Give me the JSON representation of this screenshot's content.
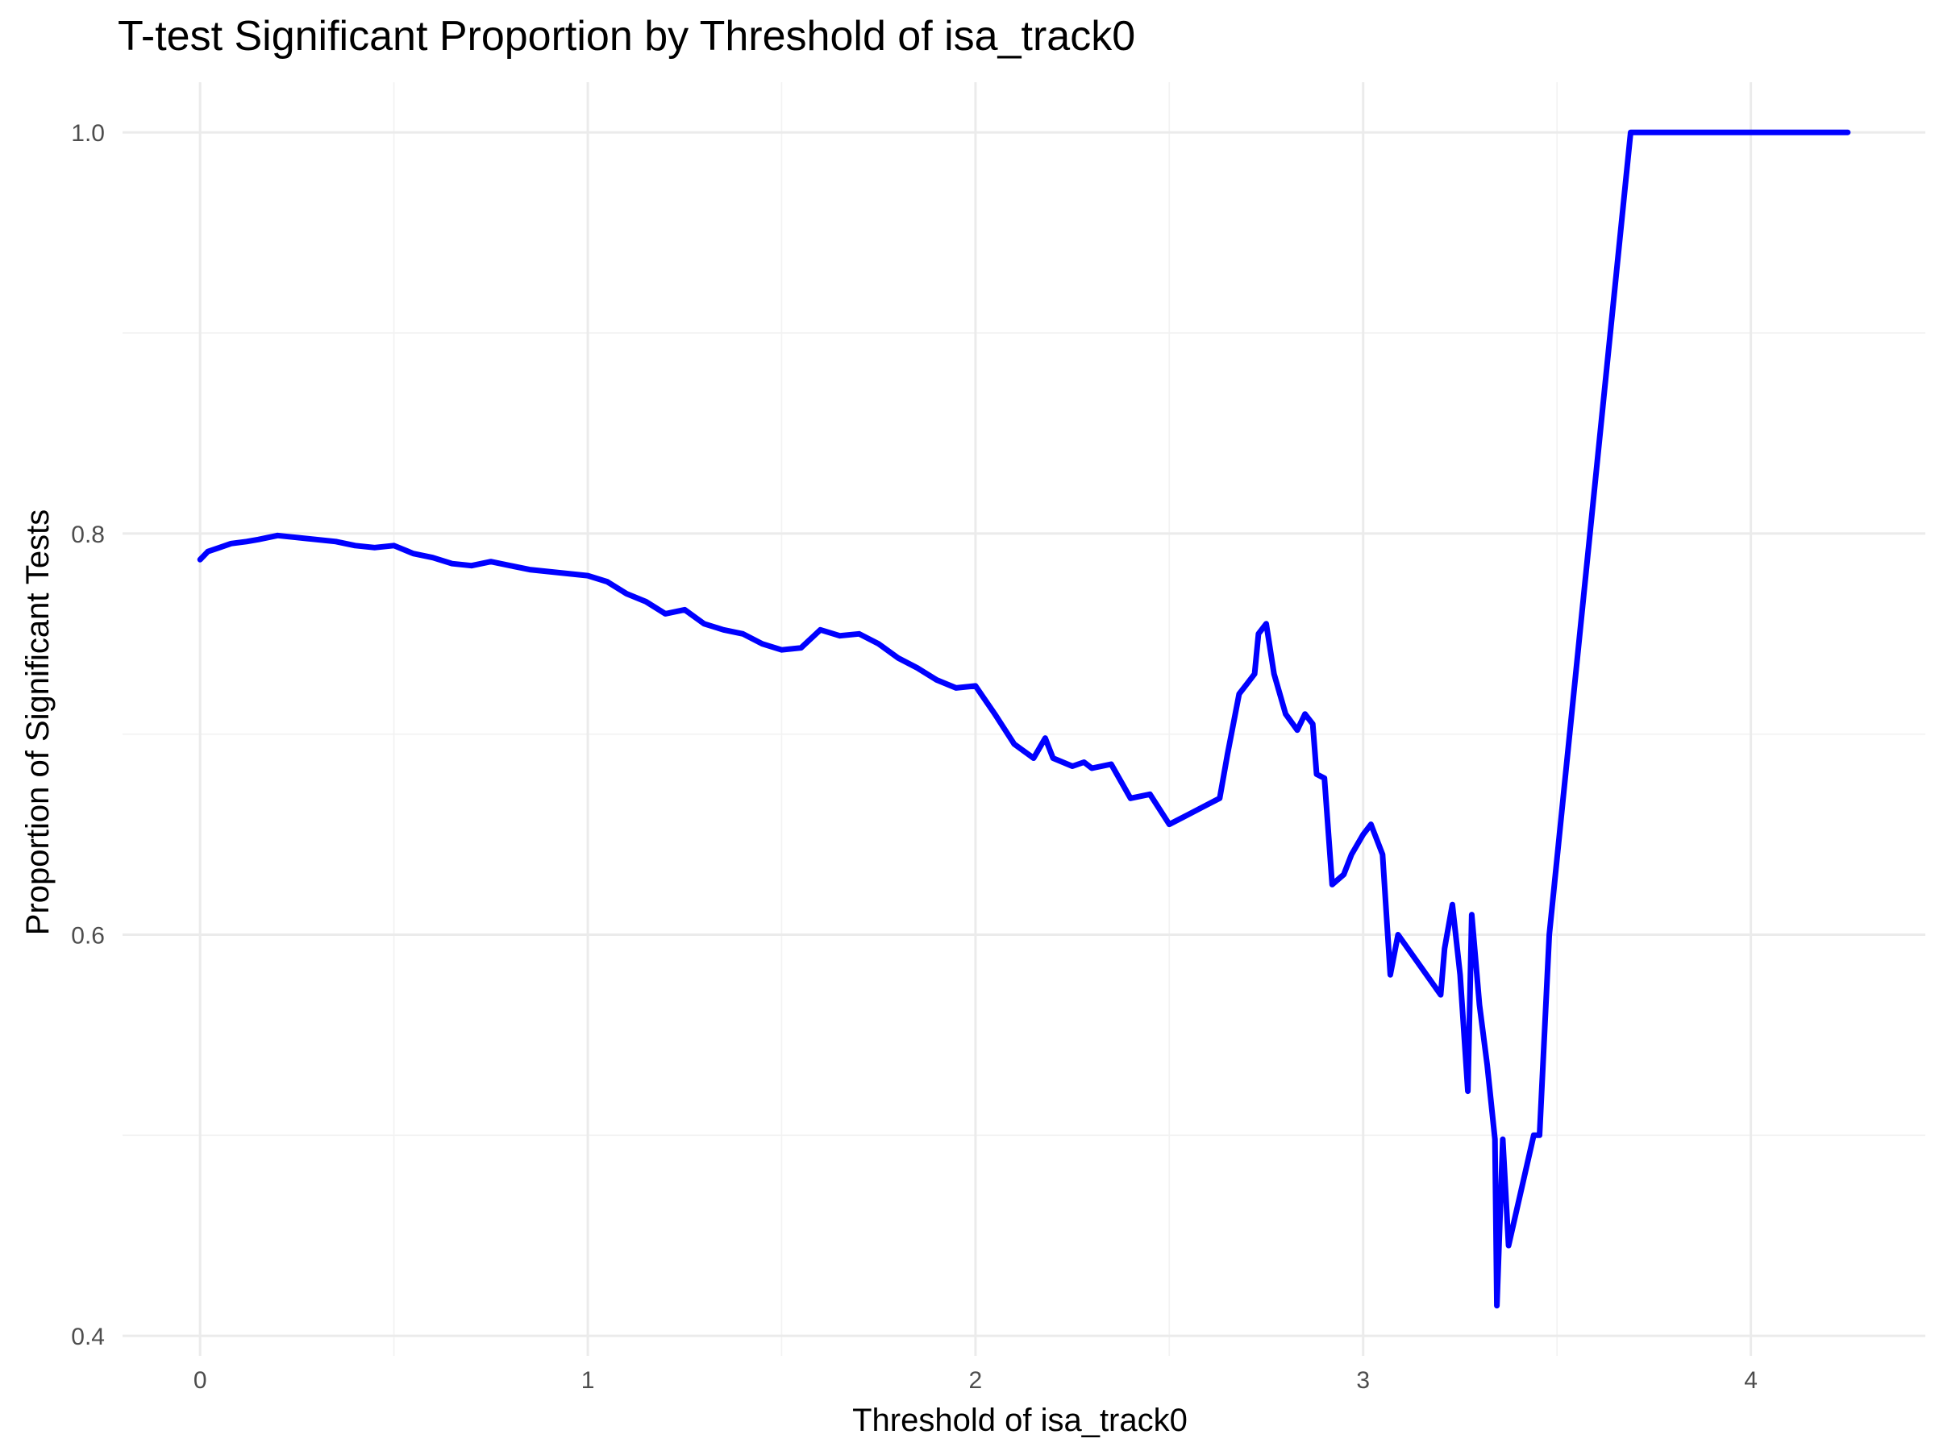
{
  "chart_data": {
    "type": "line",
    "title": "T-test Significant Proportion by Threshold of isa_track0",
    "xlabel": "Threshold of isa_track0",
    "ylabel": "Proportion of Significant Tests",
    "xlim": [
      -0.2,
      4.45
    ],
    "ylim": [
      0.39,
      1.025
    ],
    "x_ticks": [
      0,
      1,
      2,
      3,
      4
    ],
    "x_tick_labels": [
      "0",
      "1",
      "2",
      "3",
      "4"
    ],
    "y_ticks": [
      0.4,
      0.6,
      0.8,
      1.0
    ],
    "y_tick_labels": [
      "0.4",
      "0.6",
      "0.8",
      "1.0"
    ],
    "grid": true,
    "legend": "none",
    "line_color": "#0000ff",
    "series": [
      {
        "x": [
          0,
          0.02,
          0.05,
          0.08,
          0.12,
          0.15,
          0.2,
          0.25,
          0.3,
          0.35,
          0.4,
          0.45,
          0.5,
          0.55,
          0.6,
          0.65,
          0.7,
          0.75,
          0.8,
          0.85,
          0.9,
          0.95,
          1.0,
          1.05,
          1.1,
          1.15,
          1.2,
          1.25,
          1.3,
          1.35,
          1.4,
          1.45,
          1.5,
          1.55,
          1.6,
          1.65,
          1.7,
          1.75,
          1.8,
          1.85,
          1.9,
          1.95,
          2.0,
          2.05,
          2.1,
          2.15,
          2.18,
          2.2,
          2.25,
          2.28,
          2.3,
          2.35,
          2.4,
          2.45,
          2.5,
          2.55,
          2.6,
          2.63,
          2.65,
          2.68,
          2.7,
          2.72,
          2.73,
          2.75,
          2.77,
          2.8,
          2.83,
          2.85,
          2.87,
          2.88,
          2.9,
          2.92,
          2.95,
          2.97,
          3.0,
          3.02,
          3.05,
          3.07,
          3.09,
          3.2,
          3.21,
          3.23,
          3.25,
          3.27,
          3.28,
          3.3,
          3.32,
          3.34,
          3.345,
          3.36,
          3.375,
          3.44,
          3.455,
          3.48,
          3.69,
          4.25
        ],
        "y": [
          0.787,
          0.791,
          0.793,
          0.795,
          0.796,
          0.797,
          0.799,
          0.798,
          0.797,
          0.796,
          0.794,
          0.793,
          0.794,
          0.79,
          0.788,
          0.785,
          0.784,
          0.786,
          0.784,
          0.782,
          0.781,
          0.78,
          0.779,
          0.776,
          0.77,
          0.766,
          0.76,
          0.762,
          0.755,
          0.752,
          0.75,
          0.745,
          0.742,
          0.743,
          0.752,
          0.749,
          0.75,
          0.745,
          0.738,
          0.733,
          0.727,
          0.723,
          0.724,
          0.71,
          0.695,
          0.688,
          0.698,
          0.688,
          0.684,
          0.686,
          0.683,
          0.685,
          0.668,
          0.67,
          0.655,
          0.66,
          0.665,
          0.668,
          0.69,
          0.72,
          0.725,
          0.73,
          0.75,
          0.755,
          0.73,
          0.71,
          0.702,
          0.71,
          0.705,
          0.68,
          0.678,
          0.625,
          0.63,
          0.64,
          0.65,
          0.655,
          0.64,
          0.58,
          0.6,
          0.57,
          0.593,
          0.615,
          0.58,
          0.522,
          0.61,
          0.565,
          0.535,
          0.498,
          0.415,
          0.498,
          0.445,
          0.5,
          0.5,
          0.6,
          1.0,
          1.0
        ]
      }
    ]
  }
}
